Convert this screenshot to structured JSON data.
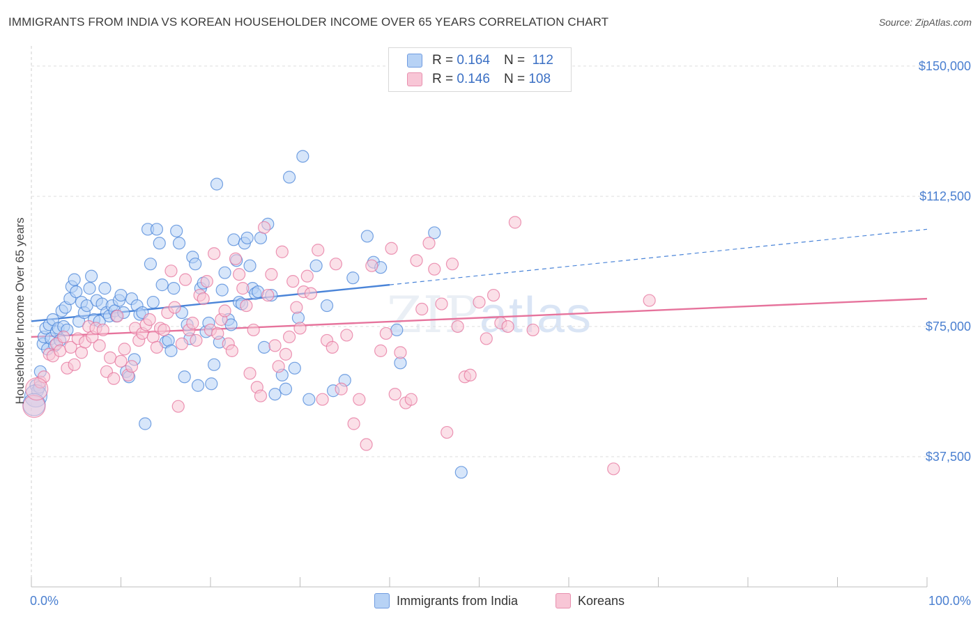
{
  "title": "IMMIGRANTS FROM INDIA VS KOREAN HOUSEHOLDER INCOME OVER 65 YEARS CORRELATION CHART",
  "source": "Source: ZipAtlas.com",
  "watermark": {
    "zip": "ZIP",
    "atlas": "atlas"
  },
  "legend": {
    "rows": [
      {
        "r_label": "R =",
        "r_value": "0.164",
        "n_label": "N =",
        "n_value": "112",
        "color": "#a9c8f0"
      },
      {
        "r_label": "R =",
        "r_value": "0.146",
        "n_label": "N =",
        "n_value": "108",
        "color": "#f6b9cd"
      }
    ]
  },
  "bottom_legend": [
    {
      "label": "Immigrants from India",
      "color": "#b7d2f5"
    },
    {
      "label": "Koreans",
      "color": "#f8c6d6"
    }
  ],
  "chart_data": {
    "type": "scatter",
    "ylabel": "Householder Income Over 65 years",
    "x_tick_labels": [
      "0.0%",
      "100.0%"
    ],
    "y_tick_labels": [
      "$37,500",
      "$75,000",
      "$112,500",
      "$150,000"
    ],
    "xlim": [
      0,
      100
    ],
    "ylim": [
      0,
      155000
    ],
    "y_ticks": [
      37500,
      75000,
      112500,
      150000
    ],
    "grid": "horizontal dashed",
    "series": [
      {
        "name": "Immigrants from India",
        "color": "#4a84d8",
        "fill": "#b7d2f5",
        "trend": {
          "x0": 0,
          "y0": 76500,
          "x1": 40,
          "y1": 87000,
          "dashed_to_x": 100,
          "dashed_to_y": 103000
        },
        "points": [
          [
            0.5,
            58000
          ],
          [
            0.7,
            56500
          ],
          [
            0.9,
            57500
          ],
          [
            1,
            62000
          ],
          [
            1.3,
            70000
          ],
          [
            1.4,
            72000
          ],
          [
            1.6,
            74500
          ],
          [
            1.8,
            68500
          ],
          [
            2,
            75500
          ],
          [
            2.2,
            71500
          ],
          [
            2.4,
            77000
          ],
          [
            2.6,
            69500
          ],
          [
            2.8,
            73500
          ],
          [
            3,
            74500
          ],
          [
            3.2,
            71000
          ],
          [
            3.4,
            79500
          ],
          [
            3.6,
            75000
          ],
          [
            3.8,
            80500
          ],
          [
            4,
            74000
          ],
          [
            4.3,
            83000
          ],
          [
            4.5,
            86500
          ],
          [
            4.8,
            88500
          ],
          [
            5,
            85000
          ],
          [
            5.3,
            76500
          ],
          [
            5.6,
            82000
          ],
          [
            5.9,
            79000
          ],
          [
            6.2,
            81000
          ],
          [
            6.5,
            86000
          ],
          [
            6.7,
            89500
          ],
          [
            7,
            77000
          ],
          [
            7.3,
            82500
          ],
          [
            7.6,
            76500
          ],
          [
            7.9,
            81500
          ],
          [
            8.2,
            86000
          ],
          [
            8.4,
            79000
          ],
          [
            8.7,
            78000
          ],
          [
            9,
            81000
          ],
          [
            9.3,
            79500
          ],
          [
            9.5,
            78000
          ],
          [
            9.8,
            82500
          ],
          [
            10,
            84000
          ],
          [
            10.3,
            79000
          ],
          [
            10.6,
            62000
          ],
          [
            10.9,
            60500
          ],
          [
            11.2,
            83000
          ],
          [
            11.5,
            65500
          ],
          [
            11.8,
            81000
          ],
          [
            12.1,
            78500
          ],
          [
            12.4,
            79000
          ],
          [
            12.7,
            47000
          ],
          [
            13,
            103000
          ],
          [
            13.3,
            93000
          ],
          [
            13.6,
            82000
          ],
          [
            14,
            103000
          ],
          [
            14.3,
            99000
          ],
          [
            14.6,
            87000
          ],
          [
            15,
            70500
          ],
          [
            15.3,
            71000
          ],
          [
            15.6,
            68000
          ],
          [
            15.9,
            86000
          ],
          [
            16.2,
            102500
          ],
          [
            16.5,
            99000
          ],
          [
            16.8,
            79000
          ],
          [
            17.1,
            60500
          ],
          [
            17.4,
            75500
          ],
          [
            17.7,
            71500
          ],
          [
            18,
            95000
          ],
          [
            18.3,
            93000
          ],
          [
            18.6,
            58000
          ],
          [
            18.9,
            86000
          ],
          [
            19.2,
            87500
          ],
          [
            19.5,
            73500
          ],
          [
            19.8,
            76000
          ],
          [
            20.1,
            58500
          ],
          [
            20.4,
            64000
          ],
          [
            20.7,
            116000
          ],
          [
            21,
            70500
          ],
          [
            21.3,
            85500
          ],
          [
            21.6,
            90500
          ],
          [
            22,
            77000
          ],
          [
            22.3,
            75500
          ],
          [
            22.6,
            100000
          ],
          [
            22.9,
            94000
          ],
          [
            23.2,
            82000
          ],
          [
            23.5,
            81500
          ],
          [
            23.8,
            99000
          ],
          [
            24.1,
            100500
          ],
          [
            24.4,
            92500
          ],
          [
            24.7,
            86000
          ],
          [
            25,
            84500
          ],
          [
            25.3,
            85000
          ],
          [
            25.6,
            100500
          ],
          [
            26,
            69000
          ],
          [
            26.4,
            104500
          ],
          [
            26.8,
            84000
          ],
          [
            27.2,
            55500
          ],
          [
            28,
            61000
          ],
          [
            28.4,
            57000
          ],
          [
            28.8,
            118000
          ],
          [
            29.4,
            63000
          ],
          [
            29.8,
            77500
          ],
          [
            30.3,
            124000
          ],
          [
            31,
            54000
          ],
          [
            31.8,
            92500
          ],
          [
            33,
            81000
          ],
          [
            33.7,
            56500
          ],
          [
            35,
            59500
          ],
          [
            35.9,
            89000
          ],
          [
            37.5,
            101000
          ],
          [
            38.2,
            93500
          ],
          [
            39,
            92000
          ],
          [
            40.8,
            74000
          ],
          [
            41.2,
            64500
          ],
          [
            45,
            102000
          ],
          [
            48,
            33000
          ]
        ],
        "large_points": [
          [
            0.5,
            55000
          ],
          [
            0.3,
            52500
          ]
        ]
      },
      {
        "name": "Koreans",
        "color": "#e6739c",
        "fill": "#f8c6d6",
        "trend": {
          "x0": 0,
          "y0": 72000,
          "x1": 100,
          "y1": 83000
        },
        "points": [
          [
            1,
            59000
          ],
          [
            1.4,
            60500
          ],
          [
            2,
            67000
          ],
          [
            2.4,
            66500
          ],
          [
            2.8,
            70000
          ],
          [
            3.2,
            68000
          ],
          [
            3.6,
            72000
          ],
          [
            4,
            63000
          ],
          [
            4.4,
            69000
          ],
          [
            4.8,
            64000
          ],
          [
            5.2,
            71500
          ],
          [
            5.6,
            67500
          ],
          [
            6,
            70500
          ],
          [
            6.4,
            75000
          ],
          [
            6.8,
            72000
          ],
          [
            7.2,
            74500
          ],
          [
            7.6,
            69500
          ],
          [
            8,
            74000
          ],
          [
            8.4,
            62000
          ],
          [
            8.8,
            66000
          ],
          [
            9.2,
            60000
          ],
          [
            9.6,
            78000
          ],
          [
            10,
            65000
          ],
          [
            10.4,
            68500
          ],
          [
            10.8,
            61000
          ],
          [
            11.2,
            63500
          ],
          [
            11.6,
            74500
          ],
          [
            12,
            71000
          ],
          [
            12.4,
            73000
          ],
          [
            12.8,
            75500
          ],
          [
            13.2,
            77000
          ],
          [
            13.6,
            72000
          ],
          [
            14,
            69000
          ],
          [
            14.4,
            74500
          ],
          [
            14.8,
            74000
          ],
          [
            15.2,
            79000
          ],
          [
            15.6,
            91000
          ],
          [
            16,
            80500
          ],
          [
            16.4,
            52000
          ],
          [
            16.8,
            70000
          ],
          [
            17.2,
            88500
          ],
          [
            17.6,
            74000
          ],
          [
            18,
            76000
          ],
          [
            18.4,
            71000
          ],
          [
            18.8,
            84000
          ],
          [
            19.2,
            83000
          ],
          [
            19.6,
            88000
          ],
          [
            20,
            74000
          ],
          [
            20.4,
            96000
          ],
          [
            20.8,
            73000
          ],
          [
            21.2,
            77000
          ],
          [
            21.6,
            79500
          ],
          [
            22,
            70000
          ],
          [
            22.4,
            68000
          ],
          [
            22.8,
            94500
          ],
          [
            23.2,
            90000
          ],
          [
            23.6,
            86000
          ],
          [
            24,
            81000
          ],
          [
            24.4,
            61500
          ],
          [
            24.8,
            74000
          ],
          [
            25.2,
            57500
          ],
          [
            25.6,
            55000
          ],
          [
            26,
            103500
          ],
          [
            26.4,
            84000
          ],
          [
            26.8,
            90000
          ],
          [
            27.2,
            69500
          ],
          [
            27.6,
            63500
          ],
          [
            28,
            96500
          ],
          [
            28.4,
            67000
          ],
          [
            28.8,
            72000
          ],
          [
            29.2,
            88000
          ],
          [
            29.6,
            80500
          ],
          [
            30,
            74500
          ],
          [
            30.4,
            85000
          ],
          [
            30.8,
            89500
          ],
          [
            31.2,
            84500
          ],
          [
            32,
            97000
          ],
          [
            32.5,
            54000
          ],
          [
            33,
            71000
          ],
          [
            33.6,
            69000
          ],
          [
            34,
            93000
          ],
          [
            34.6,
            57000
          ],
          [
            35.2,
            72500
          ],
          [
            36,
            47000
          ],
          [
            36.6,
            54000
          ],
          [
            37.4,
            41000
          ],
          [
            38,
            92500
          ],
          [
            39,
            68000
          ],
          [
            39.6,
            73000
          ],
          [
            40.2,
            97500
          ],
          [
            40.6,
            55500
          ],
          [
            41.2,
            67500
          ],
          [
            41.8,
            53000
          ],
          [
            42.4,
            54000
          ],
          [
            43,
            94000
          ],
          [
            43.6,
            80000
          ],
          [
            44.4,
            99000
          ],
          [
            45,
            91500
          ],
          [
            45.8,
            81500
          ],
          [
            46.4,
            44500
          ],
          [
            47,
            93000
          ],
          [
            47.6,
            75000
          ],
          [
            48.4,
            60500
          ],
          [
            49,
            61000
          ],
          [
            50,
            82000
          ],
          [
            50.8,
            71500
          ],
          [
            51.6,
            84000
          ],
          [
            52.4,
            76000
          ],
          [
            53.2,
            75000
          ],
          [
            54,
            105000
          ],
          [
            56,
            74000
          ],
          [
            65,
            34000
          ],
          [
            69,
            82500
          ]
        ],
        "large_points": [
          [
            0.3,
            52000
          ],
          [
            0.6,
            57000
          ]
        ]
      }
    ]
  }
}
